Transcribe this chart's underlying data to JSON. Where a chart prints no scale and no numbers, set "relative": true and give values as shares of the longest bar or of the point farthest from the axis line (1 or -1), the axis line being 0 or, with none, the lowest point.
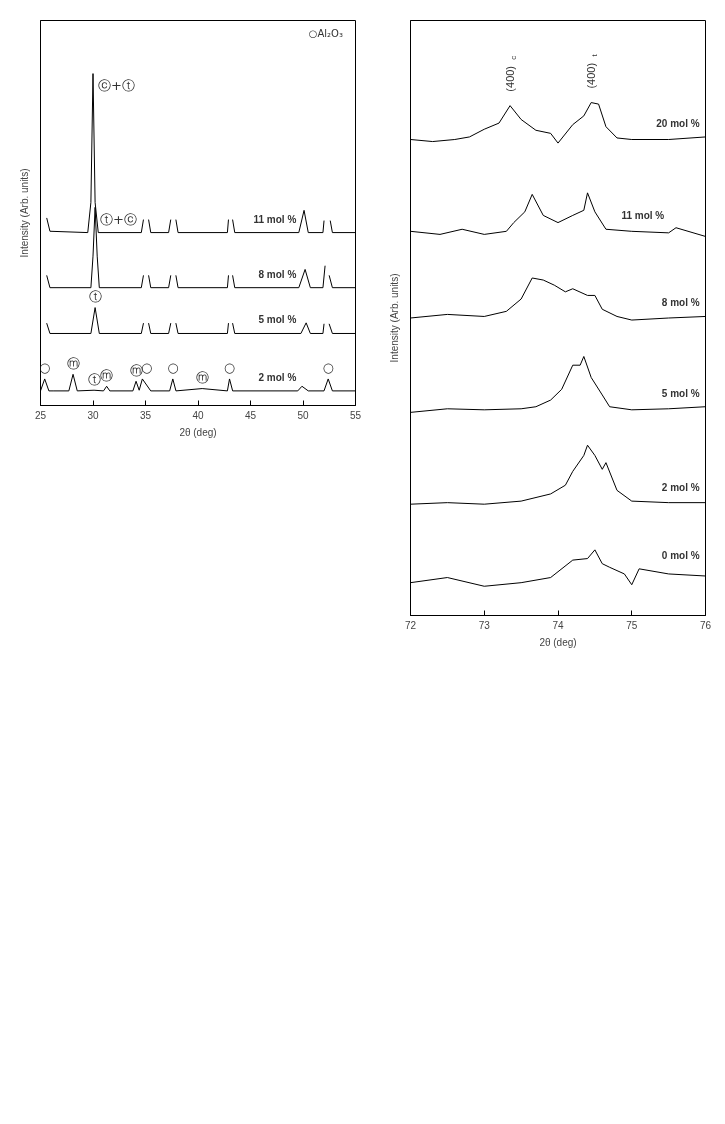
{
  "chart_data": [
    {
      "type": "line",
      "relative": true,
      "xlabel": "2θ (deg)",
      "ylabel": "Intensity (Arb. units)",
      "xlim": [
        25,
        55
      ],
      "xticks": [
        25,
        30,
        35,
        40,
        45,
        50,
        55
      ],
      "grid": false,
      "marker": "none",
      "line_style": "solid",
      "series": [
        {
          "name": "11 mol %",
          "color": "#000000",
          "x": [
            25.6,
            25.9,
            29.5,
            29.8,
            30.0,
            30.2,
            30.5,
            34.6,
            34.8,
            35.05,
            35.3,
            35.5,
            37.2,
            37.4,
            37.65,
            37.9,
            38.1,
            42.8,
            42.9,
            43.1,
            43.3,
            43.5,
            49.6,
            50.1,
            50.5,
            51.9,
            52.0,
            52.3,
            52.6,
            52.8,
            55
          ],
          "values": [
            0.564,
            0.525,
            0.521,
            0.612,
            1.0,
            0.612,
            0.521,
            0.521,
            0.559,
            null,
            0.559,
            0.521,
            0.521,
            0.559,
            null,
            0.559,
            0.521,
            0.521,
            0.559,
            null,
            0.559,
            0.521,
            0.521,
            0.588,
            0.521,
            0.521,
            0.556,
            null,
            0.556,
            0.521,
            0.521
          ]
        },
        {
          "name": "8 mol %",
          "color": "#000000",
          "x": [
            25.6,
            25.9,
            29.8,
            30.0,
            30.2,
            30.4,
            30.6,
            34.6,
            34.8,
            35.05,
            35.3,
            35.5,
            37.2,
            37.4,
            37.65,
            37.9,
            38.1,
            42.8,
            42.9,
            43.1,
            43.3,
            43.5,
            49.6,
            50.2,
            50.7,
            51.9,
            52.1,
            52.3,
            52.5,
            52.8,
            55
          ],
          "values": [
            0.391,
            0.355,
            0.355,
            0.45,
            0.597,
            0.45,
            0.355,
            0.355,
            0.391,
            null,
            0.391,
            0.355,
            0.355,
            0.391,
            null,
            0.391,
            0.355,
            0.355,
            0.391,
            null,
            0.391,
            0.355,
            0.355,
            0.41,
            0.355,
            0.355,
            0.42,
            null,
            0.391,
            0.355,
            0.355
          ]
        },
        {
          "name": "5 mol %",
          "color": "#000000",
          "x": [
            25.6,
            25.9,
            29.8,
            30.2,
            30.6,
            34.6,
            34.8,
            35.05,
            35.3,
            35.5,
            37.2,
            37.4,
            37.65,
            37.9,
            38.1,
            42.8,
            42.9,
            43.1,
            43.3,
            43.5,
            49.8,
            50.3,
            50.7,
            51.9,
            52.0,
            52.3,
            52.5,
            52.8,
            55
          ],
          "values": [
            0.247,
            0.217,
            0.217,
            0.295,
            0.217,
            0.217,
            0.247,
            null,
            0.247,
            0.217,
            0.217,
            0.247,
            null,
            0.247,
            0.217,
            0.217,
            0.247,
            null,
            0.247,
            0.217,
            0.217,
            0.249,
            0.217,
            0.217,
            0.245,
            null,
            0.245,
            0.217,
            0.217
          ]
        },
        {
          "name": "2 mol %",
          "color": "#000000",
          "x": [
            25.0,
            25.4,
            25.8,
            26.2,
            27.7,
            28.1,
            28.5,
            30.1,
            31.0,
            31.3,
            31.6,
            33.8,
            34.1,
            34.4,
            34.7,
            35.5,
            37.3,
            37.6,
            37.9,
            40.4,
            42.8,
            43.0,
            43.3,
            49.5,
            49.9,
            50.5,
            52.0,
            52.4,
            52.8,
            55
          ],
          "values": [
            0.044,
            0.08,
            0.044,
            0.044,
            0.044,
            0.094,
            0.044,
            0.046,
            0.044,
            0.058,
            0.044,
            0.044,
            0.073,
            0.046,
            0.08,
            0.044,
            0.044,
            0.08,
            0.044,
            0.051,
            0.044,
            0.08,
            0.044,
            0.044,
            0.058,
            0.044,
            0.044,
            0.08,
            0.044,
            0.044
          ]
        }
      ],
      "annotations": [
        "○Al₂O₃",
        {
          "text": "ⓒ+ⓣ",
          "x": 30.0,
          "y": 1.0
        },
        {
          "text": "ⓣ+ⓒ",
          "x": 30.2,
          "y": 0.597
        },
        {
          "text": "ⓣ",
          "x": 30.2,
          "y": 0.295
        },
        {
          "text": "ⓜ",
          "x": 28.1,
          "y": 0.094
        },
        {
          "text": "ⓣ",
          "x": 30.1,
          "y": 0.046
        },
        {
          "text": "ⓜ",
          "x": 31.3,
          "y": 0.058
        },
        {
          "text": "ⓜ",
          "x": 34.1,
          "y": 0.073
        },
        {
          "text": "ⓜ",
          "x": 40.4,
          "y": 0.051
        },
        {
          "text": "○",
          "x": 25.4,
          "y": 0.08
        },
        {
          "text": "○",
          "x": 35.1,
          "y": 0.08
        },
        {
          "text": "○",
          "x": 37.6,
          "y": 0.08
        },
        {
          "text": "○",
          "x": 43.0,
          "y": 0.08
        },
        {
          "text": "○",
          "x": 52.4,
          "y": 0.08
        }
      ]
    },
    {
      "type": "line",
      "relative": true,
      "xlabel": "2θ (deg)",
      "ylabel": "Intensity (Arb. units)",
      "xlim": [
        72,
        76
      ],
      "xticks": [
        72,
        73,
        74,
        75,
        76
      ],
      "grid": false,
      "marker": "none",
      "line_style": "solid",
      "series": [
        {
          "name": "20 mol %",
          "color": "#000000",
          "x": [
            72.0,
            72.3,
            72.6,
            72.8,
            73.0,
            73.2,
            73.35,
            73.5,
            73.7,
            73.9,
            74.0,
            74.2,
            74.35,
            74.45,
            74.55,
            74.65,
            74.8,
            75.0,
            75.5,
            76.0
          ],
          "values": [
            0.928,
            0.924,
            0.928,
            0.933,
            0.948,
            0.96,
            0.994,
            0.967,
            0.946,
            0.94,
            0.921,
            0.957,
            0.974,
            1.0,
            0.997,
            0.953,
            0.931,
            0.928,
            0.928,
            0.933
          ]
        },
        {
          "name": "11 mol %",
          "color": "#000000",
          "x": [
            72.0,
            72.4,
            72.7,
            73.0,
            73.3,
            73.4,
            73.55,
            73.65,
            73.8,
            74.0,
            74.2,
            74.35,
            74.4,
            74.5,
            74.65,
            75.0,
            75.5,
            75.6,
            76.0
          ],
          "values": [
            0.749,
            0.743,
            0.753,
            0.743,
            0.749,
            0.766,
            0.787,
            0.821,
            0.78,
            0.766,
            0.78,
            0.79,
            0.824,
            0.787,
            0.753,
            0.749,
            0.746,
            0.756,
            0.739
          ]
        },
        {
          "name": "8 mol %",
          "color": "#000000",
          "x": [
            72.0,
            72.5,
            73.0,
            73.3,
            73.5,
            73.65,
            73.8,
            73.95,
            74.1,
            74.2,
            74.4,
            74.5,
            74.6,
            74.8,
            75.0,
            75.5,
            76.0
          ],
          "values": [
            0.58,
            0.587,
            0.583,
            0.593,
            0.617,
            0.658,
            0.654,
            0.644,
            0.631,
            0.637,
            0.624,
            0.624,
            0.597,
            0.583,
            0.576,
            0.58,
            0.583
          ]
        },
        {
          "name": "5 mol %",
          "color": "#000000",
          "x": [
            72.0,
            72.5,
            73.0,
            73.5,
            73.7,
            73.9,
            74.05,
            74.2,
            74.3,
            74.35,
            74.45,
            74.6,
            74.7,
            75.0,
            75.5,
            76.0
          ],
          "values": [
            0.396,
            0.403,
            0.401,
            0.403,
            0.407,
            0.42,
            0.441,
            0.488,
            0.488,
            0.505,
            0.464,
            0.43,
            0.407,
            0.401,
            0.403,
            0.407
          ]
        },
        {
          "name": "2 mol %",
          "color": "#000000",
          "x": [
            72.0,
            72.5,
            73.0,
            73.5,
            73.9,
            74.1,
            74.2,
            74.35,
            74.4,
            74.5,
            74.6,
            74.65,
            74.8,
            75.0,
            75.5,
            76.0
          ],
          "values": [
            0.217,
            0.22,
            0.217,
            0.223,
            0.237,
            0.254,
            0.281,
            0.312,
            0.332,
            0.312,
            0.285,
            0.298,
            0.244,
            0.223,
            0.22,
            0.22
          ]
        },
        {
          "name": "0 mol %",
          "color": "#000000",
          "x": [
            72.0,
            72.5,
            73.0,
            73.5,
            73.9,
            74.2,
            74.4,
            74.5,
            74.6,
            74.7,
            74.9,
            75.0,
            75.1,
            75.5,
            76.0
          ],
          "values": [
            0.064,
            0.074,
            0.057,
            0.064,
            0.074,
            0.108,
            0.111,
            0.128,
            0.101,
            0.094,
            0.081,
            0.06,
            0.091,
            0.081,
            0.077
          ]
        }
      ],
      "annotations": [
        {
          "text": "(400)$_{c}$",
          "x": 73.35,
          "y": 0.994
        },
        {
          "text": "(400)$_{t}$",
          "x": 74.45,
          "y": 1.0
        }
      ]
    }
  ]
}
